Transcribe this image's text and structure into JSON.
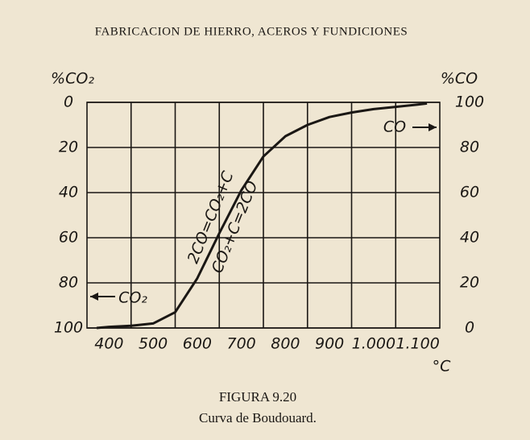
{
  "header": "FABRICACION DE HIERRO, ACEROS Y FUNDICIONES",
  "chart_data": {
    "type": "line",
    "ylabel": "%CO₂",
    "y2label": "%CO",
    "x": [
      372,
      400,
      450,
      500,
      550,
      600,
      650,
      700,
      750,
      800,
      850,
      900,
      950,
      1000,
      1050,
      1100,
      1121
    ],
    "series": [
      {
        "name": "CO",
        "color": "#1a1714",
        "axis": "y2",
        "values": [
          0,
          0.5,
          1,
          2,
          7,
          22,
          42,
          61,
          76,
          85,
          90,
          93.5,
          95.5,
          97,
          98,
          99,
          99.5
        ]
      }
    ],
    "xlim": [
      350,
      1150
    ],
    "xticks": [
      400,
      500,
      600,
      700,
      800,
      900,
      {
        "value": 1000,
        "label": "1.000"
      },
      {
        "value": 1100,
        "label": "1.100"
      }
    ],
    "xunit": "°C",
    "ylim": [
      100,
      0
    ],
    "yticks": [
      0,
      20,
      40,
      60,
      80,
      100
    ],
    "y2lim": [
      0,
      100
    ],
    "y2ticks": [
      0,
      20,
      40,
      60,
      80,
      100
    ],
    "grid": true,
    "annotations": [
      "2CO=CO₂+C",
      "CO₂+C=2CO",
      "CO",
      "CO₂"
    ]
  },
  "caption": {
    "figure": "FIGURA 9.20",
    "title": "Curva de Boudouard."
  }
}
